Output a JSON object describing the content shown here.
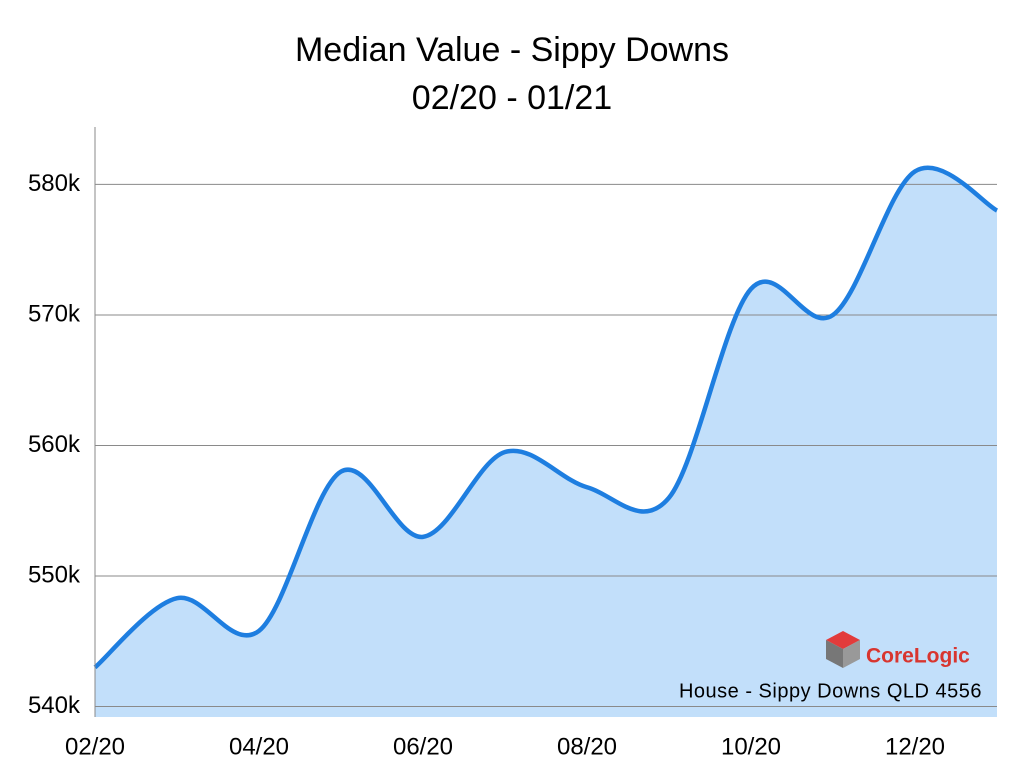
{
  "chart_data": {
    "type": "area",
    "title": "Median Value - Sippy Downs",
    "subtitle": "02/20 - 01/21",
    "categories": [
      "02/20",
      null,
      "04/20",
      null,
      "06/20",
      null,
      "08/20",
      null,
      "10/20",
      null,
      "12/20",
      null
    ],
    "series": [
      {
        "name": "House - Sippy Downs QLD 4556",
        "color": "#1e7ee0",
        "fill": "#c2dffa",
        "values": [
          543,
          548.3,
          545.8,
          558,
          553,
          559.5,
          556.8,
          556,
          572,
          570,
          581,
          578
        ]
      }
    ],
    "ylim": [
      539.2,
      584.4
    ],
    "yticks": [
      {
        "value": 540,
        "label": "540k"
      },
      {
        "value": 550,
        "label": "550k"
      },
      {
        "value": 560,
        "label": "560k"
      },
      {
        "value": 570,
        "label": "570k"
      },
      {
        "value": 580,
        "label": "580k"
      }
    ],
    "grid": true,
    "logo": "CoreLogic"
  }
}
